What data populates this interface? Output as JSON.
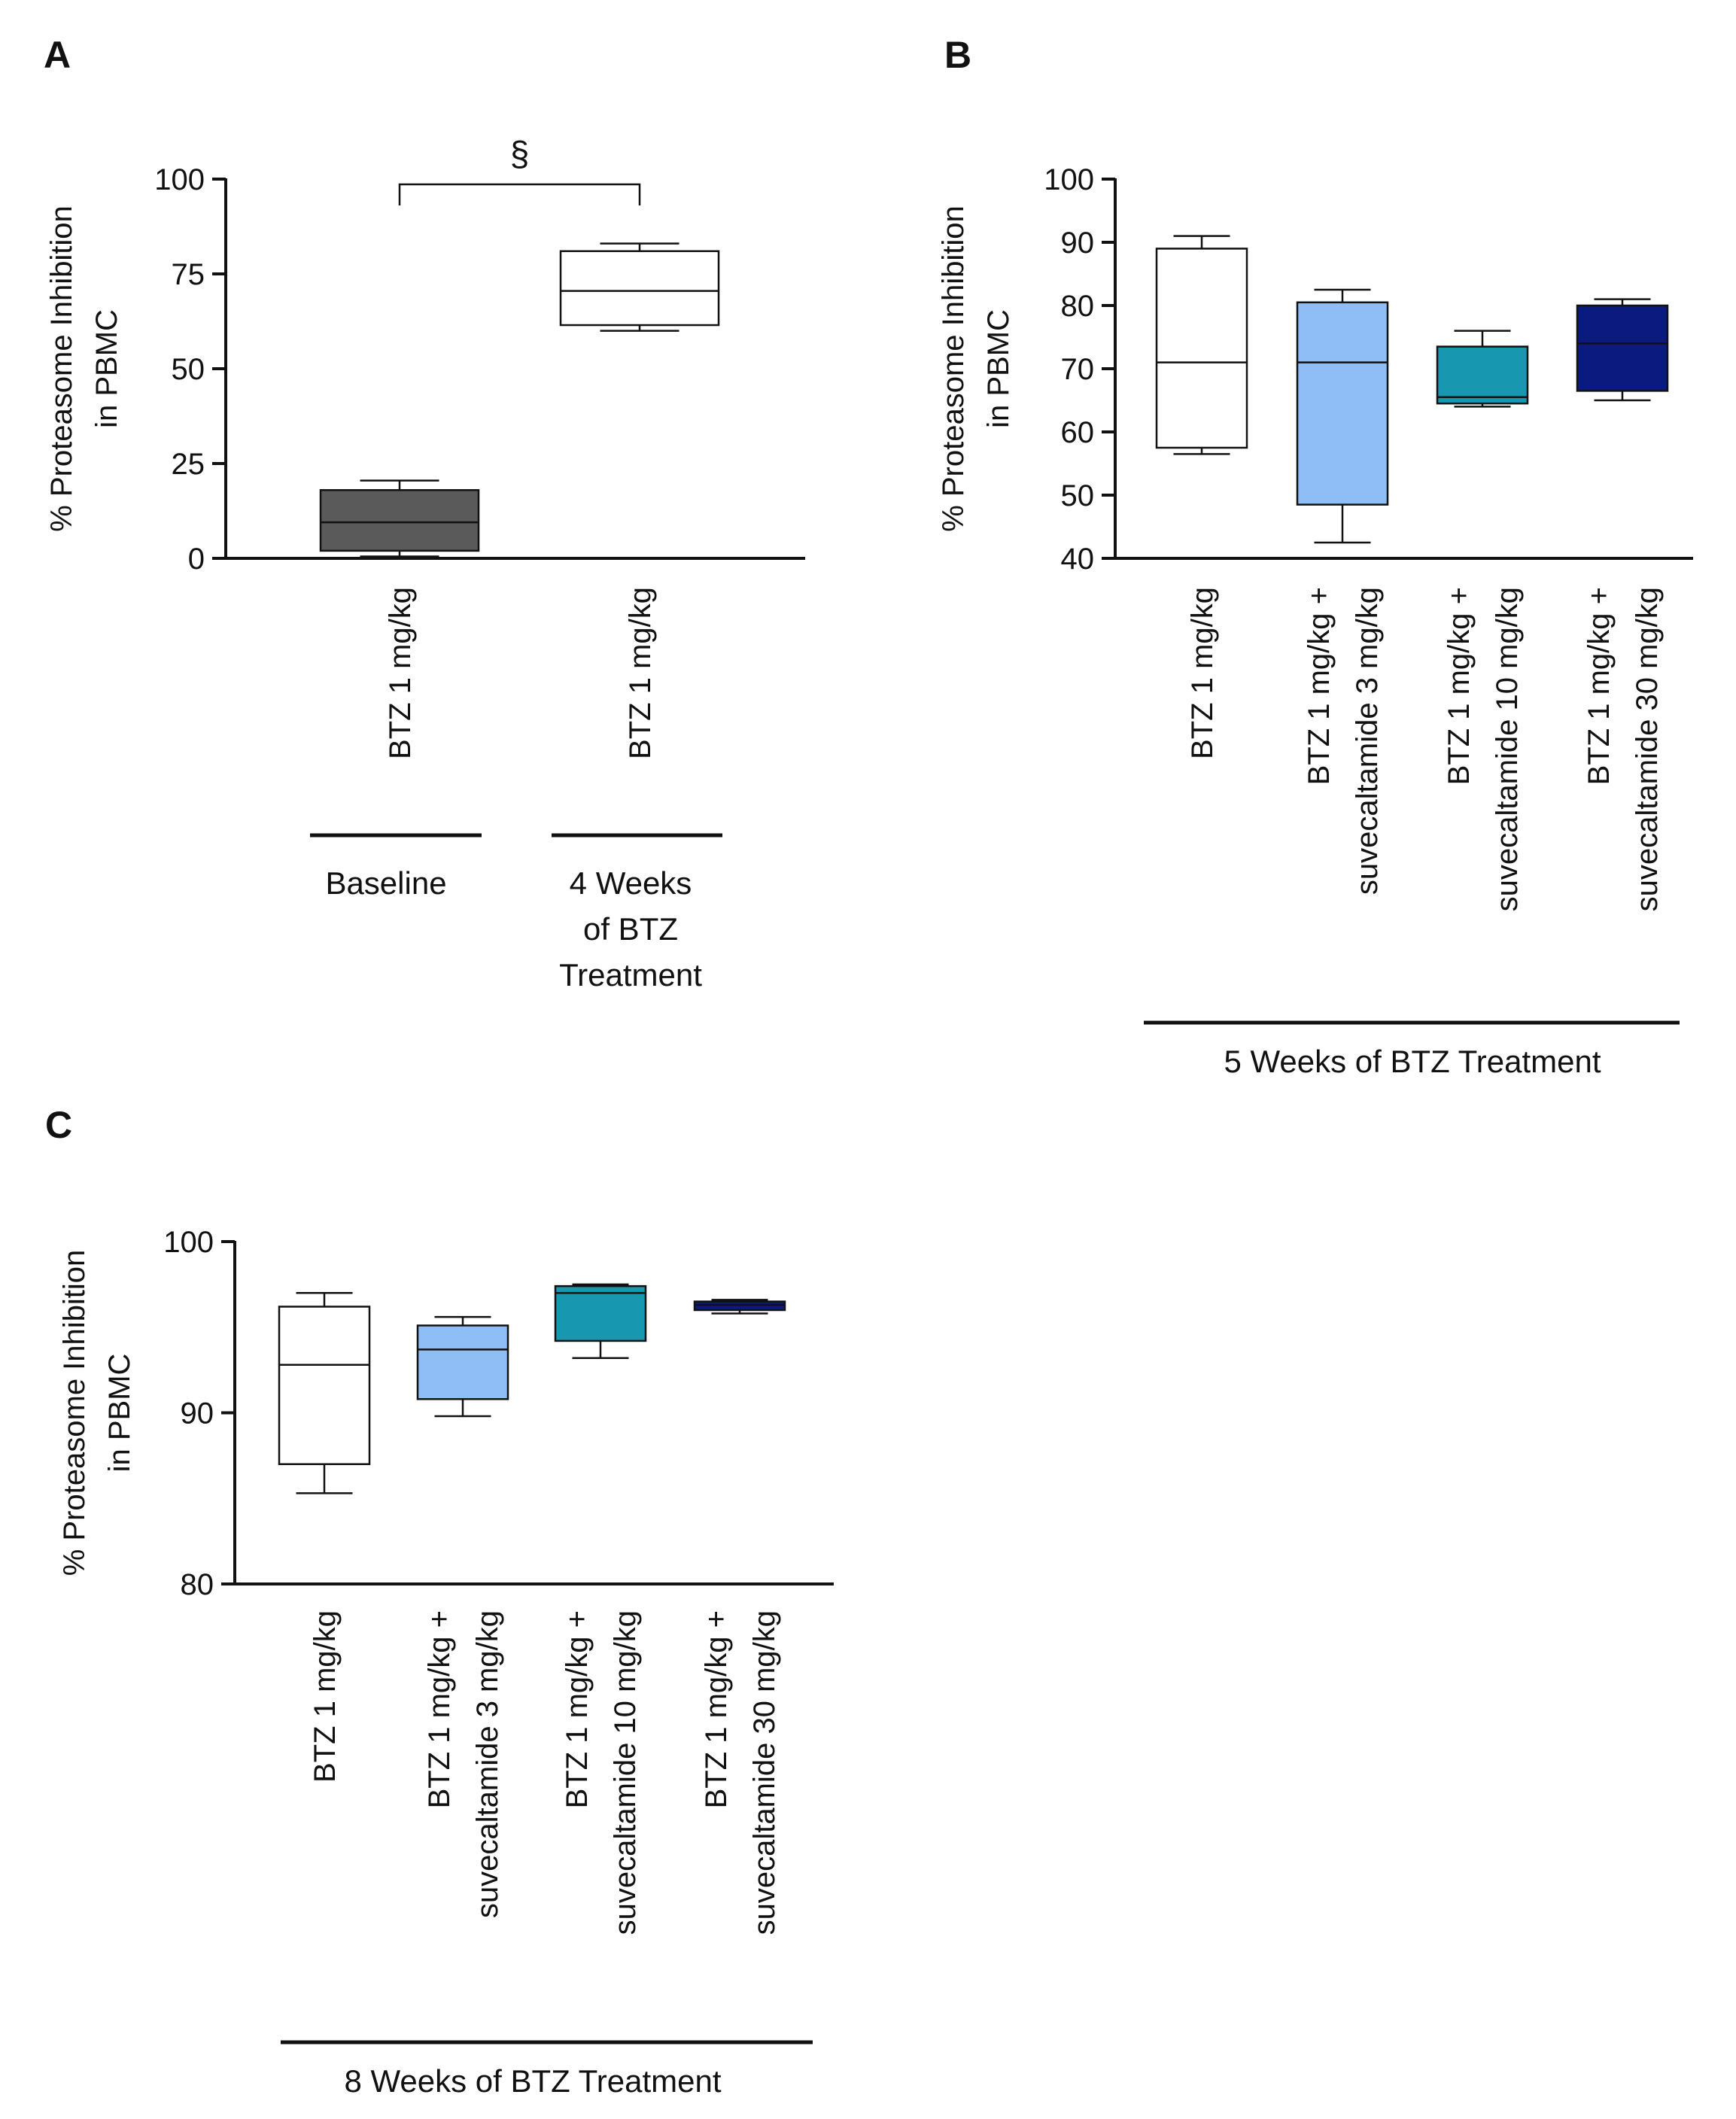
{
  "figure": {
    "panel_labels": [
      "A",
      "B",
      "C"
    ]
  },
  "chart_data": [
    {
      "type": "box",
      "panel": "A",
      "ylabel_lines": [
        "% Proteasome Inhibition",
        "in PBMC"
      ],
      "ylim": [
        0,
        100
      ],
      "yticks": [
        0,
        25,
        50,
        75,
        100
      ],
      "categories": [
        {
          "lines": [
            "BTZ 1 mg/kg"
          ],
          "min": 0.5,
          "q1": 2,
          "median": 9.5,
          "q3": 18,
          "max": 20.5,
          "color": "#5a5a5a"
        },
        {
          "lines": [
            "BTZ 1 mg/kg"
          ],
          "min": 60,
          "q1": 61.5,
          "median": 70.5,
          "q3": 81,
          "max": 83,
          "color": "#ffffff"
        }
      ],
      "groups": [
        {
          "lines": [
            "Baseline"
          ],
          "span": [
            0,
            0
          ]
        },
        {
          "lines": [
            "4 Weeks",
            "of BTZ",
            "Treatment"
          ],
          "span": [
            1,
            1
          ]
        }
      ],
      "significance": {
        "symbol": "§",
        "between": [
          0,
          1
        ],
        "y": 98
      }
    },
    {
      "type": "box",
      "panel": "B",
      "ylabel_lines": [
        "% Proteasome Inhibition",
        "in PBMC"
      ],
      "ylim": [
        40,
        100
      ],
      "yticks": [
        40,
        50,
        60,
        70,
        80,
        90,
        100
      ],
      "categories": [
        {
          "lines": [
            "BTZ 1 mg/kg"
          ],
          "min": 56.5,
          "q1": 57.5,
          "median": 71,
          "q3": 89,
          "max": 91,
          "color": "#ffffff"
        },
        {
          "lines": [
            "BTZ 1 mg/kg +",
            "suvecaltamide 3 mg/kg"
          ],
          "min": 42.5,
          "q1": 48.5,
          "median": 71,
          "q3": 80.5,
          "max": 82.5,
          "color": "#8fbef6"
        },
        {
          "lines": [
            "BTZ 1 mg/kg +",
            "suvecaltamide 10 mg/kg"
          ],
          "min": 64,
          "q1": 64.5,
          "median": 65.5,
          "q3": 73.5,
          "max": 76,
          "color": "#1797b0"
        },
        {
          "lines": [
            "BTZ 1 mg/kg +",
            "suvecaltamide 30 mg/kg"
          ],
          "min": 65,
          "q1": 66.5,
          "median": 74,
          "q3": 80,
          "max": 81,
          "color": "#0a1a7f"
        }
      ],
      "groups": [
        {
          "lines": [
            "5 Weeks of BTZ Treatment"
          ],
          "span": [
            0,
            3
          ]
        }
      ]
    },
    {
      "type": "box",
      "panel": "C",
      "ylabel_lines": [
        "% Proteasome Inhibition",
        "in PBMC"
      ],
      "ylim": [
        80,
        100
      ],
      "yticks": [
        80,
        90,
        100
      ],
      "categories": [
        {
          "lines": [
            "BTZ 1 mg/kg"
          ],
          "min": 85.3,
          "q1": 87,
          "median": 92.8,
          "q3": 96.2,
          "max": 97,
          "color": "#ffffff"
        },
        {
          "lines": [
            "BTZ 1 mg/kg +",
            "suvecaltamide 3 mg/kg"
          ],
          "min": 89.8,
          "q1": 90.8,
          "median": 93.7,
          "q3": 95.1,
          "max": 95.6,
          "color": "#8fbef6"
        },
        {
          "lines": [
            "BTZ 1 mg/kg +",
            "suvecaltamide 10 mg/kg"
          ],
          "min": 93.2,
          "q1": 94.2,
          "median": 97,
          "q3": 97.4,
          "max": 97.5,
          "color": "#1797b0"
        },
        {
          "lines": [
            "BTZ 1 mg/kg +",
            "suvecaltamide 30 mg/kg"
          ],
          "min": 95.8,
          "q1": 96,
          "median": 96.3,
          "q3": 96.5,
          "max": 96.6,
          "color": "#0a1a7f"
        }
      ],
      "groups": [
        {
          "lines": [
            "8 Weeks of BTZ Treatment"
          ],
          "span": [
            0,
            3
          ]
        }
      ]
    }
  ]
}
